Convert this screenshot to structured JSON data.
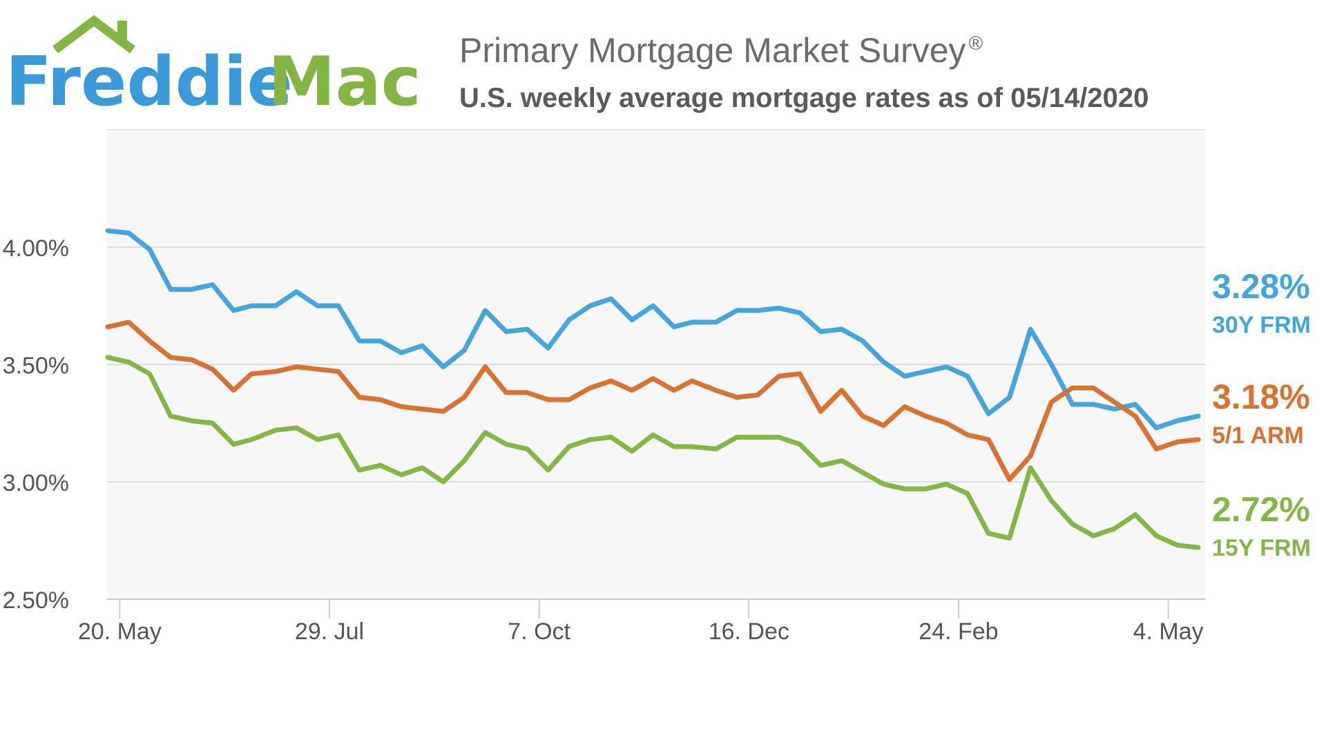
{
  "logo": {
    "word1": "Freddie",
    "word2": "Mac",
    "color_blue": "#3a9ad9",
    "color_green": "#82b541"
  },
  "header": {
    "title": "Primary Mortgage Market Survey",
    "title_mark": "®",
    "subtitle": "U.S. weekly average mortgage rates as of 05/14/2020"
  },
  "chart_data": {
    "type": "line",
    "x": [
      "2019-05-16",
      "2019-05-23",
      "2019-05-30",
      "2019-06-06",
      "2019-06-13",
      "2019-06-20",
      "2019-06-27",
      "2019-07-03",
      "2019-07-11",
      "2019-07-18",
      "2019-07-25",
      "2019-08-01",
      "2019-08-08",
      "2019-08-15",
      "2019-08-22",
      "2019-08-29",
      "2019-09-05",
      "2019-09-12",
      "2019-09-19",
      "2019-09-26",
      "2019-10-03",
      "2019-10-10",
      "2019-10-17",
      "2019-10-24",
      "2019-10-31",
      "2019-11-07",
      "2019-11-14",
      "2019-11-21",
      "2019-11-27",
      "2019-12-05",
      "2019-12-12",
      "2019-12-19",
      "2019-12-26",
      "2020-01-02",
      "2020-01-09",
      "2020-01-16",
      "2020-01-23",
      "2020-01-30",
      "2020-02-06",
      "2020-02-13",
      "2020-02-20",
      "2020-02-27",
      "2020-03-05",
      "2020-03-12",
      "2020-03-19",
      "2020-03-26",
      "2020-04-02",
      "2020-04-09",
      "2020-04-16",
      "2020-04-23",
      "2020-04-30",
      "2020-05-07",
      "2020-05-14"
    ],
    "x_tick_labels": [
      "20. May",
      "29. Jul",
      "7. Oct",
      "16. Dec",
      "24. Feb",
      "4. May"
    ],
    "x_tick_dates": [
      "2019-05-20",
      "2019-07-29",
      "2019-10-07",
      "2019-12-16",
      "2020-02-24",
      "2020-05-04"
    ],
    "y_ticks": [
      2.5,
      3.0,
      3.5,
      4.0
    ],
    "y_tick_labels": [
      "2.50%",
      "3.00%",
      "3.50%",
      "4.00%"
    ],
    "ylim": [
      2.5,
      4.5
    ],
    "grid": true,
    "title": "",
    "xlabel": "",
    "ylabel": "",
    "series": [
      {
        "name": "30Y FRM",
        "end_label": "3.28%",
        "color": "#41a5df",
        "values": [
          4.07,
          4.06,
          3.99,
          3.82,
          3.82,
          3.84,
          3.73,
          3.75,
          3.75,
          3.81,
          3.75,
          3.75,
          3.6,
          3.6,
          3.55,
          3.58,
          3.49,
          3.56,
          3.73,
          3.64,
          3.65,
          3.57,
          3.69,
          3.75,
          3.78,
          3.69,
          3.75,
          3.66,
          3.68,
          3.68,
          3.73,
          3.73,
          3.74,
          3.72,
          3.64,
          3.65,
          3.6,
          3.51,
          3.45,
          3.47,
          3.49,
          3.45,
          3.29,
          3.36,
          3.65,
          3.5,
          3.33,
          3.33,
          3.31,
          3.33,
          3.23,
          3.26,
          3.28
        ]
      },
      {
        "name": "5/1 ARM",
        "end_label": "3.18%",
        "color": "#d9722f",
        "values": [
          3.66,
          3.68,
          3.6,
          3.53,
          3.52,
          3.48,
          3.39,
          3.46,
          3.47,
          3.49,
          3.48,
          3.47,
          3.36,
          3.35,
          3.32,
          3.31,
          3.3,
          3.36,
          3.49,
          3.38,
          3.38,
          3.35,
          3.35,
          3.4,
          3.43,
          3.39,
          3.44,
          3.39,
          3.43,
          3.39,
          3.36,
          3.37,
          3.45,
          3.46,
          3.3,
          3.39,
          3.28,
          3.24,
          3.32,
          3.28,
          3.25,
          3.2,
          3.18,
          3.01,
          3.11,
          3.34,
          3.4,
          3.4,
          3.34,
          3.28,
          3.14,
          3.17,
          3.18
        ]
      },
      {
        "name": "15Y FRM",
        "end_label": "2.72%",
        "color": "#84b644",
        "values": [
          3.53,
          3.51,
          3.46,
          3.28,
          3.26,
          3.25,
          3.16,
          3.18,
          3.22,
          3.23,
          3.18,
          3.2,
          3.05,
          3.07,
          3.03,
          3.06,
          3.0,
          3.09,
          3.21,
          3.16,
          3.14,
          3.05,
          3.15,
          3.18,
          3.19,
          3.13,
          3.2,
          3.15,
          3.15,
          3.14,
          3.19,
          3.19,
          3.19,
          3.16,
          3.07,
          3.09,
          3.04,
          2.99,
          2.97,
          2.97,
          2.99,
          2.95,
          2.78,
          2.76,
          3.06,
          2.92,
          2.82,
          2.77,
          2.8,
          2.86,
          2.77,
          2.73,
          2.72
        ]
      }
    ]
  }
}
